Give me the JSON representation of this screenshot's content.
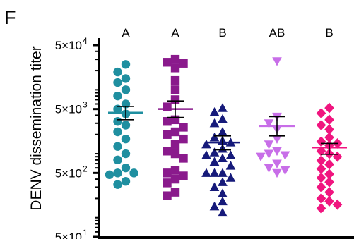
{
  "panel_label": "F",
  "chart_data": {
    "type": "scatter",
    "title": "",
    "xlabel": "",
    "ylabel": "DENV dissemination titer",
    "y_scale": "log",
    "ylim": [
      50,
      50000
    ],
    "y_ticks": [
      {
        "value": 50,
        "label": "5×10",
        "exp": "1"
      },
      {
        "value": 500,
        "label": "5×10",
        "exp": "2"
      },
      {
        "value": 5000,
        "label": "5×10",
        "exp": "3"
      },
      {
        "value": 50000,
        "label": "5×10",
        "exp": "4"
      }
    ],
    "grid": false,
    "legend": "none",
    "groups": [
      {
        "label": "A",
        "marker": "circle",
        "color": "#1f8fa0",
        "mean": 4400,
        "sem_low": 3400,
        "sem_high": 5500,
        "values": [
          25000,
          19000,
          15000,
          13000,
          10000,
          8000,
          6000,
          5000,
          4200,
          3200,
          2800,
          2200,
          1700,
          1300,
          1000,
          800,
          600,
          500,
          500,
          470,
          370,
          330
        ]
      },
      {
        "label": "A",
        "marker": "square",
        "color": "#8a1a8c",
        "mean": 5000,
        "sem_low": 3700,
        "sem_high": 6700,
        "values": [
          30000,
          27000,
          26000,
          22000,
          14000,
          10000,
          7000,
          5400,
          3400,
          3200,
          2600,
          2200,
          2000,
          1700,
          1400,
          1100,
          1000,
          850,
          550,
          500,
          450,
          400,
          350,
          250,
          220
        ]
      },
      {
        "label": "B",
        "marker": "triangle-up",
        "color": "#161a7a",
        "mean": 1500,
        "sem_low": 1150,
        "sem_high": 1900,
        "values": [
          5200,
          4500,
          3500,
          3000,
          2200,
          1800,
          1600,
          1500,
          1400,
          1200,
          1050,
          950,
          950,
          850,
          750,
          650,
          500,
          500,
          500,
          420,
          360,
          300,
          240,
          180,
          150,
          120
        ]
      },
      {
        "label": "AB",
        "marker": "triangle-down",
        "color": "#c86ee8",
        "mean": 2700,
        "sem_low": 1900,
        "sem_high": 3800,
        "values": [
          28000,
          3800,
          3000,
          2400,
          1700,
          1400,
          1100,
          1000,
          950,
          900,
          700,
          600,
          550,
          500
        ]
      },
      {
        "label": "B",
        "marker": "diamond",
        "color": "#f0157f",
        "mean": 1250,
        "sem_low": 980,
        "sem_high": 1450,
        "values": [
          5200,
          4300,
          3400,
          2800,
          2400,
          1800,
          1550,
          1450,
          1350,
          1100,
          1000,
          900,
          780,
          680,
          580,
          480,
          420,
          360,
          300,
          250,
          200,
          180,
          160,
          140
        ]
      }
    ]
  }
}
